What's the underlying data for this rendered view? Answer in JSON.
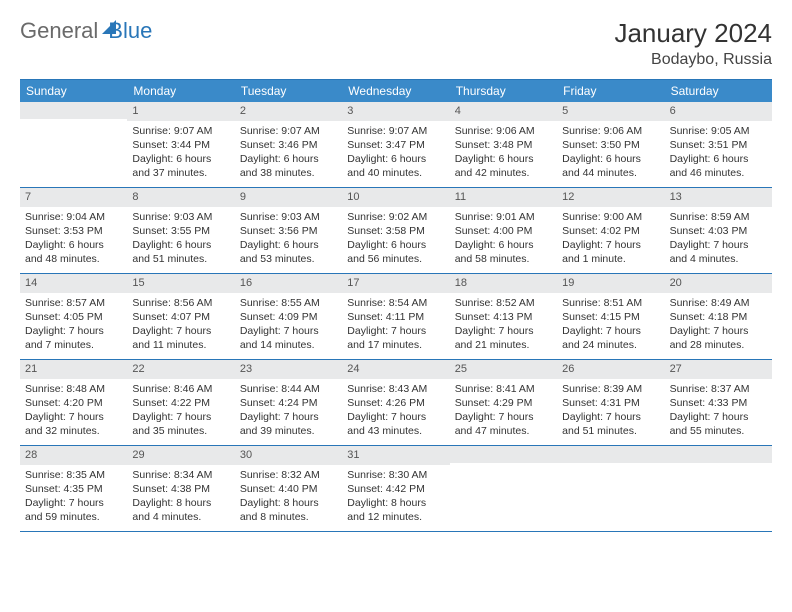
{
  "logo": {
    "word1": "General",
    "word2": "Blue"
  },
  "title": "January 2024",
  "location": "Bodaybo, Russia",
  "day_headers": [
    "Sunday",
    "Monday",
    "Tuesday",
    "Wednesday",
    "Thursday",
    "Friday",
    "Saturday"
  ],
  "colors": {
    "header_bg": "#3a8ac9",
    "border": "#2976b8",
    "daynum_bg": "#e8e9ea",
    "logo_gray": "#6a6a6a"
  },
  "start_offset": 1,
  "days": [
    {
      "n": "1",
      "sunrise": "9:07 AM",
      "sunset": "3:44 PM",
      "daylight": "6 hours and 37 minutes."
    },
    {
      "n": "2",
      "sunrise": "9:07 AM",
      "sunset": "3:46 PM",
      "daylight": "6 hours and 38 minutes."
    },
    {
      "n": "3",
      "sunrise": "9:07 AM",
      "sunset": "3:47 PM",
      "daylight": "6 hours and 40 minutes."
    },
    {
      "n": "4",
      "sunrise": "9:06 AM",
      "sunset": "3:48 PM",
      "daylight": "6 hours and 42 minutes."
    },
    {
      "n": "5",
      "sunrise": "9:06 AM",
      "sunset": "3:50 PM",
      "daylight": "6 hours and 44 minutes."
    },
    {
      "n": "6",
      "sunrise": "9:05 AM",
      "sunset": "3:51 PM",
      "daylight": "6 hours and 46 minutes."
    },
    {
      "n": "7",
      "sunrise": "9:04 AM",
      "sunset": "3:53 PM",
      "daylight": "6 hours and 48 minutes."
    },
    {
      "n": "8",
      "sunrise": "9:03 AM",
      "sunset": "3:55 PM",
      "daylight": "6 hours and 51 minutes."
    },
    {
      "n": "9",
      "sunrise": "9:03 AM",
      "sunset": "3:56 PM",
      "daylight": "6 hours and 53 minutes."
    },
    {
      "n": "10",
      "sunrise": "9:02 AM",
      "sunset": "3:58 PM",
      "daylight": "6 hours and 56 minutes."
    },
    {
      "n": "11",
      "sunrise": "9:01 AM",
      "sunset": "4:00 PM",
      "daylight": "6 hours and 58 minutes."
    },
    {
      "n": "12",
      "sunrise": "9:00 AM",
      "sunset": "4:02 PM",
      "daylight": "7 hours and 1 minute."
    },
    {
      "n": "13",
      "sunrise": "8:59 AM",
      "sunset": "4:03 PM",
      "daylight": "7 hours and 4 minutes."
    },
    {
      "n": "14",
      "sunrise": "8:57 AM",
      "sunset": "4:05 PM",
      "daylight": "7 hours and 7 minutes."
    },
    {
      "n": "15",
      "sunrise": "8:56 AM",
      "sunset": "4:07 PM",
      "daylight": "7 hours and 11 minutes."
    },
    {
      "n": "16",
      "sunrise": "8:55 AM",
      "sunset": "4:09 PM",
      "daylight": "7 hours and 14 minutes."
    },
    {
      "n": "17",
      "sunrise": "8:54 AM",
      "sunset": "4:11 PM",
      "daylight": "7 hours and 17 minutes."
    },
    {
      "n": "18",
      "sunrise": "8:52 AM",
      "sunset": "4:13 PM",
      "daylight": "7 hours and 21 minutes."
    },
    {
      "n": "19",
      "sunrise": "8:51 AM",
      "sunset": "4:15 PM",
      "daylight": "7 hours and 24 minutes."
    },
    {
      "n": "20",
      "sunrise": "8:49 AM",
      "sunset": "4:18 PM",
      "daylight": "7 hours and 28 minutes."
    },
    {
      "n": "21",
      "sunrise": "8:48 AM",
      "sunset": "4:20 PM",
      "daylight": "7 hours and 32 minutes."
    },
    {
      "n": "22",
      "sunrise": "8:46 AM",
      "sunset": "4:22 PM",
      "daylight": "7 hours and 35 minutes."
    },
    {
      "n": "23",
      "sunrise": "8:44 AM",
      "sunset": "4:24 PM",
      "daylight": "7 hours and 39 minutes."
    },
    {
      "n": "24",
      "sunrise": "8:43 AM",
      "sunset": "4:26 PM",
      "daylight": "7 hours and 43 minutes."
    },
    {
      "n": "25",
      "sunrise": "8:41 AM",
      "sunset": "4:29 PM",
      "daylight": "7 hours and 47 minutes."
    },
    {
      "n": "26",
      "sunrise": "8:39 AM",
      "sunset": "4:31 PM",
      "daylight": "7 hours and 51 minutes."
    },
    {
      "n": "27",
      "sunrise": "8:37 AM",
      "sunset": "4:33 PM",
      "daylight": "7 hours and 55 minutes."
    },
    {
      "n": "28",
      "sunrise": "8:35 AM",
      "sunset": "4:35 PM",
      "daylight": "7 hours and 59 minutes."
    },
    {
      "n": "29",
      "sunrise": "8:34 AM",
      "sunset": "4:38 PM",
      "daylight": "8 hours and 4 minutes."
    },
    {
      "n": "30",
      "sunrise": "8:32 AM",
      "sunset": "4:40 PM",
      "daylight": "8 hours and 8 minutes."
    },
    {
      "n": "31",
      "sunrise": "8:30 AM",
      "sunset": "4:42 PM",
      "daylight": "8 hours and 12 minutes."
    }
  ],
  "labels": {
    "sunrise": "Sunrise:",
    "sunset": "Sunset:",
    "daylight": "Daylight:"
  }
}
